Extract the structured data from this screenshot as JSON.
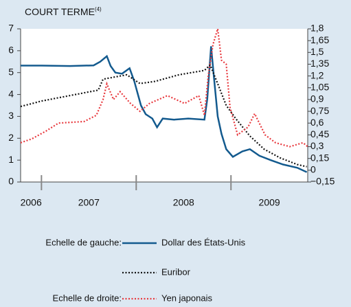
{
  "chart_data": {
    "type": "line",
    "title": "COURT TERME",
    "title_note": "(4)",
    "xlim": [
      2006.78,
      2009.81
    ],
    "xticks": [
      2007,
      2008,
      2009
    ],
    "year_labels": [
      2006,
      2007,
      2008,
      2009
    ],
    "ylim": [
      0,
      7
    ],
    "yticks": [
      0,
      1,
      2,
      3,
      4,
      5,
      6,
      7
    ],
    "y2lim": [
      -0.15,
      1.8
    ],
    "y2ticks": [
      {
        "value": -0.15,
        "label": "−0,15"
      },
      0,
      {
        "value": 0.15,
        "label": "0,15"
      },
      {
        "value": 0.3,
        "label": "0,3"
      },
      {
        "value": 0.45,
        "label": "0,45"
      },
      {
        "value": 0.6,
        "label": "0,6"
      },
      {
        "value": 0.75,
        "label": "0,75"
      },
      {
        "value": 0.9,
        "label": "0,9"
      },
      {
        "value": 1.05,
        "label": "1,05"
      },
      {
        "value": 1.2,
        "label": "1,2"
      },
      {
        "value": 1.35,
        "label": "1,35"
      },
      {
        "value": 1.5,
        "label": "1,5"
      },
      {
        "value": 1.65,
        "label": "1,65"
      },
      {
        "value": 1.8,
        "label": "1,8"
      }
    ],
    "scale_labels": [
      "Echelle de gauche:",
      "Echelle de droite:"
    ],
    "series": [
      {
        "name": "Dollar des États-Unis",
        "color": "#135a8e",
        "style": "solid",
        "axis": "y",
        "x": [
          2006.78,
          2007.0,
          2007.3,
          2007.55,
          2007.62,
          2007.69,
          2007.73,
          2007.78,
          2007.85,
          2007.93,
          2007.98,
          2008.05,
          2008.1,
          2008.17,
          2008.22,
          2008.28,
          2008.4,
          2008.55,
          2008.72,
          2008.75,
          2008.79,
          2008.82,
          2008.86,
          2008.9,
          2008.95,
          2009.02,
          2009.12,
          2009.2,
          2009.3,
          2009.42,
          2009.55,
          2009.7,
          2009.8
        ],
        "values": [
          5.32,
          5.32,
          5.3,
          5.33,
          5.5,
          5.75,
          5.3,
          5.0,
          4.95,
          5.2,
          4.6,
          3.5,
          3.1,
          2.9,
          2.5,
          2.9,
          2.85,
          2.9,
          2.85,
          3.8,
          6.2,
          4.8,
          3.0,
          2.2,
          1.5,
          1.15,
          1.4,
          1.5,
          1.2,
          1.0,
          0.8,
          0.65,
          0.45
        ]
      },
      {
        "name": "Euribor",
        "color": "#111111",
        "style": "dotted",
        "axis": "y",
        "x": [
          2006.78,
          2007.0,
          2007.3,
          2007.6,
          2007.65,
          2007.9,
          2008.04,
          2008.2,
          2008.45,
          2008.72,
          2008.78,
          2008.85,
          2008.95,
          2009.05,
          2009.2,
          2009.35,
          2009.52,
          2009.7,
          2009.8
        ],
        "values": [
          3.45,
          3.7,
          3.95,
          4.2,
          4.7,
          4.9,
          4.5,
          4.6,
          4.9,
          5.1,
          5.35,
          4.6,
          3.5,
          2.9,
          2.1,
          1.5,
          1.1,
          0.8,
          0.7
        ]
      },
      {
        "name": "Yen japonais",
        "color": "#e8383d",
        "style": "dotted",
        "axis": "y2",
        "x": [
          2006.78,
          2006.9,
          2007.05,
          2007.18,
          2007.45,
          2007.58,
          2007.65,
          2007.69,
          2007.76,
          2007.83,
          2007.94,
          2008.04,
          2008.14,
          2008.33,
          2008.51,
          2008.66,
          2008.72,
          2008.76,
          2008.81,
          2008.86,
          2008.9,
          2008.95,
          2008.99,
          2009.07,
          2009.18,
          2009.25,
          2009.36,
          2009.47,
          2009.62,
          2009.76,
          2009.81
        ],
        "values": [
          0.35,
          0.4,
          0.5,
          0.6,
          0.62,
          0.7,
          0.9,
          1.1,
          0.9,
          1.0,
          0.85,
          0.75,
          0.85,
          0.95,
          0.85,
          0.95,
          0.7,
          1.2,
          1.6,
          1.8,
          1.4,
          1.35,
          0.8,
          0.45,
          0.55,
          0.72,
          0.45,
          0.35,
          0.3,
          0.35,
          0.3
        ]
      }
    ]
  }
}
